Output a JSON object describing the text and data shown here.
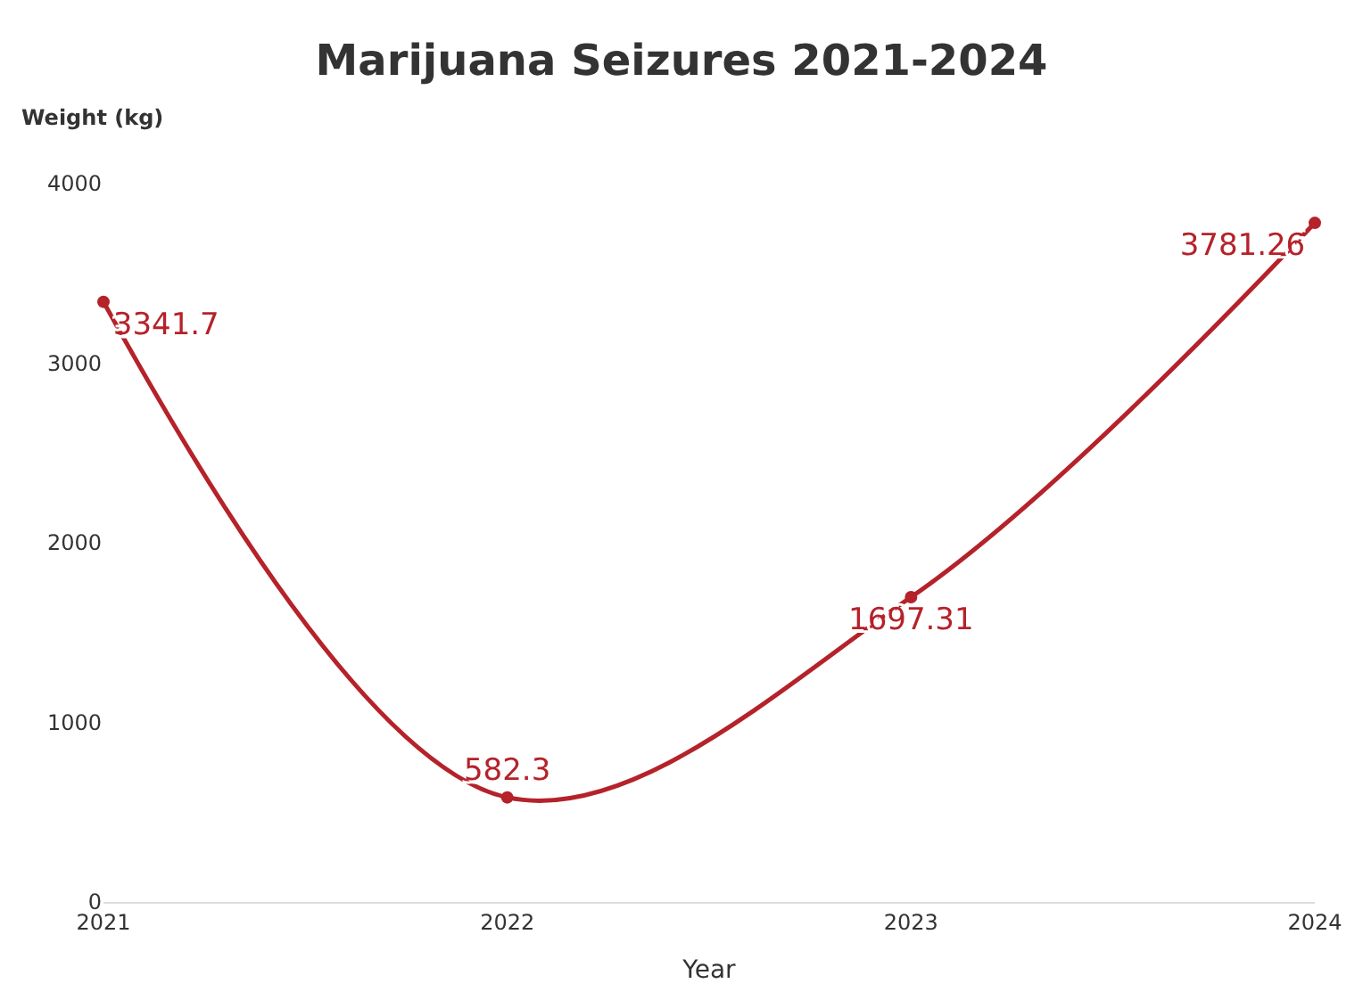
{
  "chart_data": {
    "type": "line",
    "title": "Marijuana Seizures 2021-2024",
    "xlabel": "Year",
    "ylabel": "Weight (kg)",
    "x": [
      2021,
      2022,
      2023,
      2024
    ],
    "series": [
      {
        "color": "#b5222a",
        "values": [
          3341.7,
          582.3,
          1697.31,
          3781.26
        ]
      }
    ],
    "xlim": [
      2021,
      2024
    ],
    "xticks": [
      2021,
      2022,
      2023,
      2024
    ],
    "ylim": [
      0,
      4000
    ],
    "yticks": [
      0,
      1000,
      2000,
      3000,
      4000
    ],
    "marker": "circle",
    "line_style": "solid",
    "data_labels": true
  }
}
